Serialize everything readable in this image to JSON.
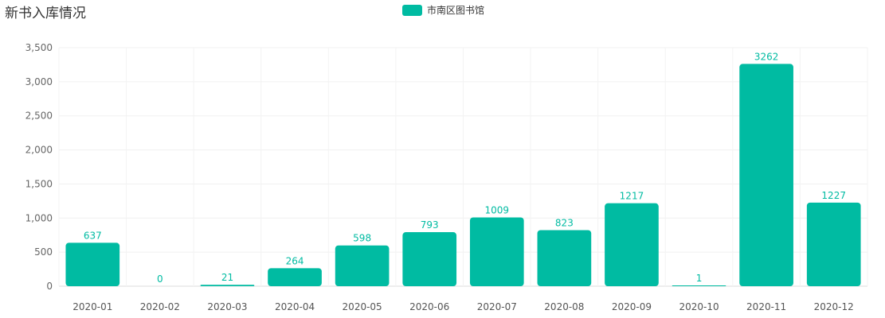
{
  "chart_data": {
    "type": "bar",
    "title": "新书入库情况",
    "legend_position": "top-center",
    "grid": true,
    "categories": [
      "2020-01",
      "2020-02",
      "2020-03",
      "2020-04",
      "2020-05",
      "2020-06",
      "2020-07",
      "2020-08",
      "2020-09",
      "2020-10",
      "2020-11",
      "2020-12"
    ],
    "series": [
      {
        "name": "市南区图书馆",
        "color": "#00bba2",
        "values": [
          637,
          0,
          21,
          264,
          598,
          793,
          1009,
          823,
          1217,
          1,
          3262,
          1227
        ]
      }
    ],
    "ylim": [
      0,
      3500
    ],
    "yticks": [
      0,
      500,
      1000,
      1500,
      2000,
      2500,
      3000,
      3500
    ],
    "ytick_labels": [
      "0",
      "500",
      "1,000",
      "1,500",
      "2,000",
      "2,500",
      "3,000",
      "3,500"
    ]
  }
}
